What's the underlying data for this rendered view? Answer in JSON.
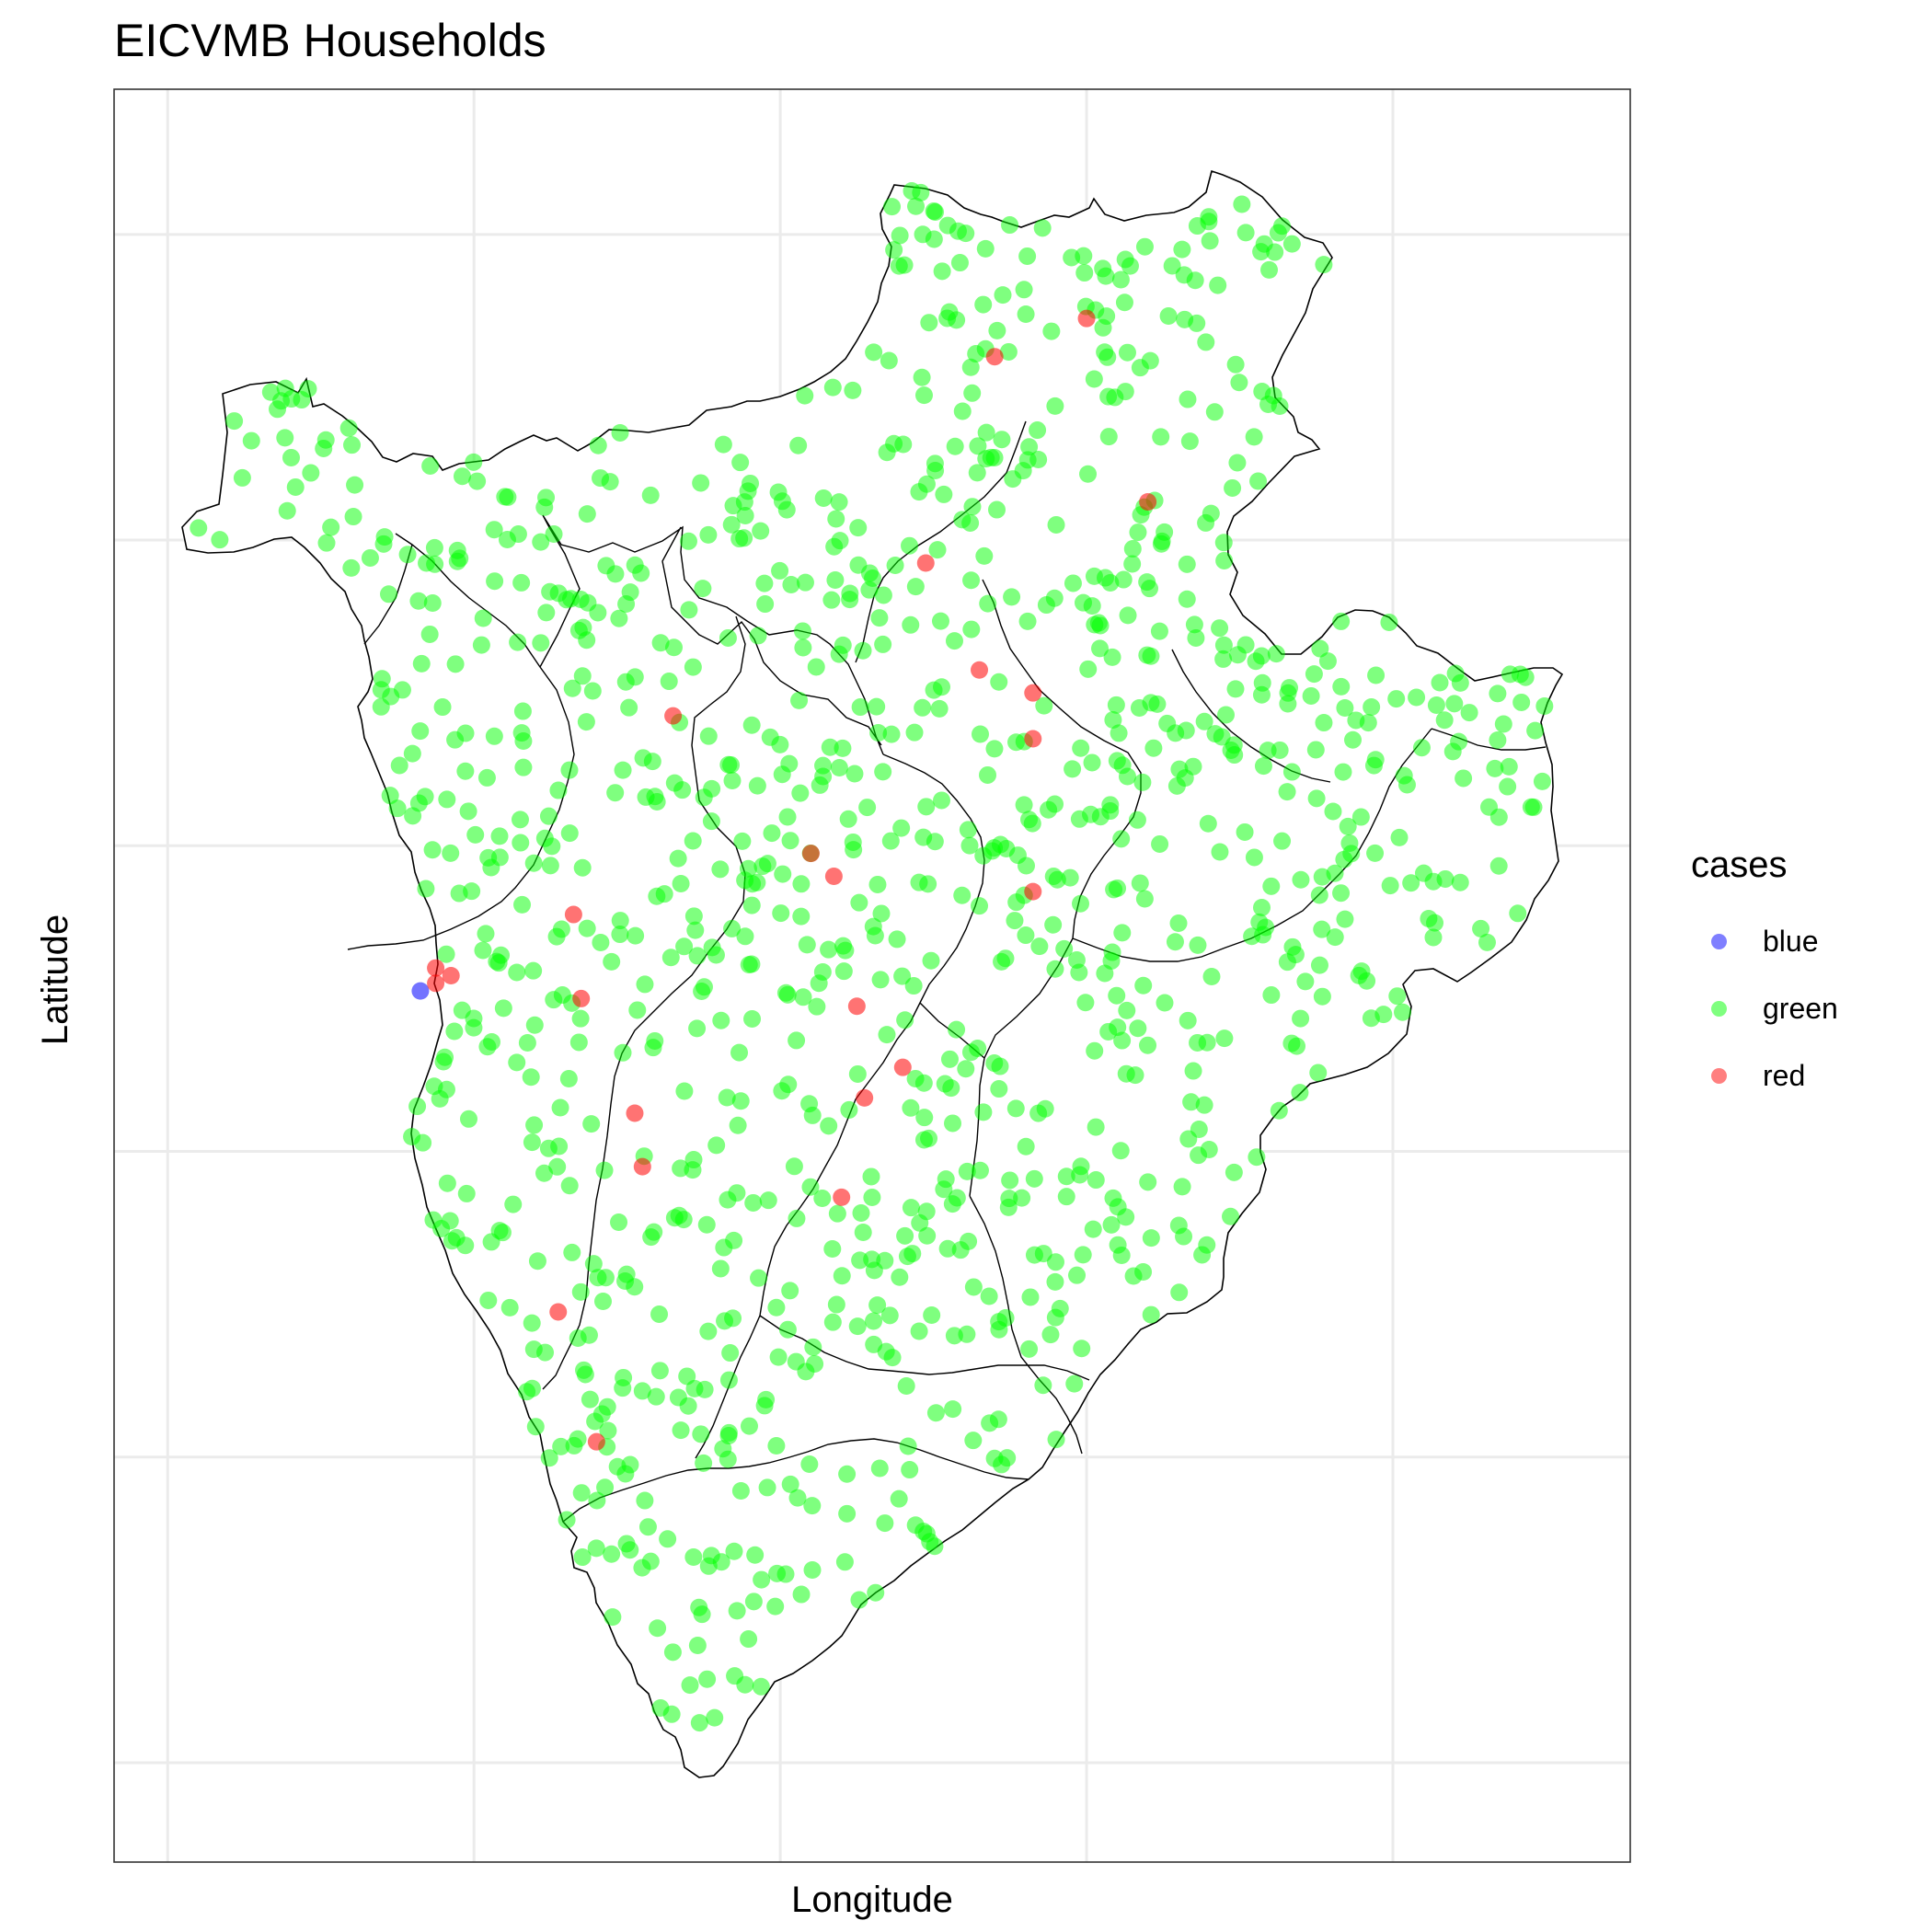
{
  "chart_data": {
    "type": "scatter",
    "title": "EICVMB Households",
    "xlabel": "Longitude",
    "ylabel": "Latitude",
    "xlim": [
      28.93,
      30.91
    ],
    "ylim": [
      -4.53,
      -2.21
    ],
    "grid": true,
    "tick_labels_shown": false,
    "legend": {
      "title": "cases",
      "position": "right",
      "entries": [
        {
          "label": "blue",
          "color": "#0000ff"
        },
        {
          "label": "green",
          "color": "#00ff00"
        },
        {
          "label": "red",
          "color": "#ff0000"
        }
      ]
    },
    "point_alpha": 0.5,
    "series": [
      {
        "name": "blue",
        "color": "#0000ff",
        "x": [
          29.33
        ],
        "y": [
          -3.39
        ]
      },
      {
        "name": "red",
        "color": "#ff0000",
        "x": [
          29.35,
          29.35,
          29.37,
          29.53,
          29.54,
          29.61,
          29.66,
          29.62,
          29.87,
          29.84,
          29.91,
          29.99,
          30.06,
          30.13,
          30.13,
          30.2,
          30.13,
          30.08,
          30.28,
          29.88,
          29.9,
          29.96,
          29.51,
          29.56
        ],
        "y": [
          -3.38,
          -3.36,
          -3.37,
          -3.29,
          -3.4,
          -3.55,
          -3.03,
          -3.62,
          -3.24,
          -3.21,
          -3.53,
          -2.83,
          -2.97,
          -3.0,
          -3.26,
          -2.51,
          -3.06,
          -2.56,
          -2.75,
          -3.66,
          -3.41,
          -3.49,
          -3.81,
          -3.98
        ]
      }
    ],
    "green_cloud": {
      "name": "green",
      "color": "#00ff00",
      "approx_count": 1100,
      "region": "Burundi (provinces outlined)"
    }
  }
}
